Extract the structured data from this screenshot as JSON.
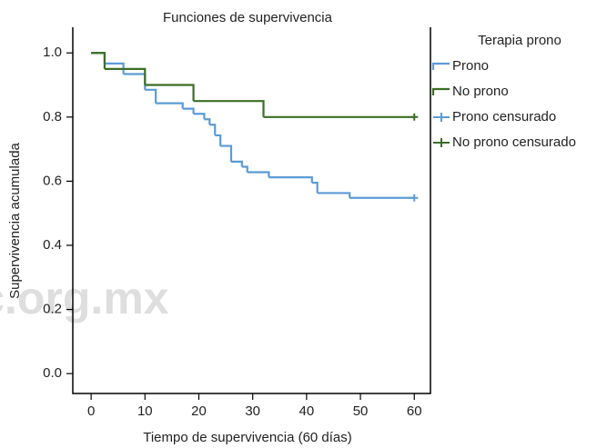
{
  "chart_data": {
    "type": "step",
    "title": "Funciones de supervivencia",
    "x_label": "Tiempo de supervivencia (60 días)",
    "y_label": "Supervivencia acumulada",
    "legend_title": "Terapia prono",
    "legend": "right-outside",
    "watermark": "aphic.org.mx",
    "xlim": [
      -3.4,
      63
    ],
    "ylim": [
      -0.062,
      1.08
    ],
    "xticks": [
      0,
      10,
      20,
      30,
      40,
      50,
      60
    ],
    "yticks": [
      {
        "value": 0,
        "label": "0.0"
      },
      0.2,
      0.4,
      0.6,
      0.8,
      {
        "value": 1,
        "label": "1.0"
      }
    ],
    "series": [
      {
        "name": "Prono",
        "color": "#5b9bd5",
        "x": [
          0,
          2.5,
          6,
          10,
          12,
          17,
          19,
          21,
          22,
          23,
          24,
          26,
          28,
          29,
          33,
          41,
          42,
          48,
          60
        ],
        "values": [
          1.0,
          0.967,
          0.934,
          0.885,
          0.843,
          0.826,
          0.81,
          0.793,
          0.776,
          0.743,
          0.71,
          0.661,
          0.645,
          0.628,
          0.612,
          0.595,
          0.563,
          0.548,
          0.548
        ]
      },
      {
        "name": "No prono",
        "color": "#3b6e26",
        "x": [
          0,
          2.5,
          10,
          19,
          32,
          60
        ],
        "values": [
          1.0,
          0.95,
          0.9,
          0.85,
          0.8,
          0.8
        ]
      },
      {
        "name": "Prono censurado",
        "color": "#5b9bd5",
        "censor": true,
        "x": [
          60
        ],
        "values": [
          0.548
        ]
      },
      {
        "name": "No prono censurado",
        "color": "#3b6e26",
        "censor": true,
        "x": [
          60
        ],
        "values": [
          0.8
        ]
      }
    ]
  }
}
